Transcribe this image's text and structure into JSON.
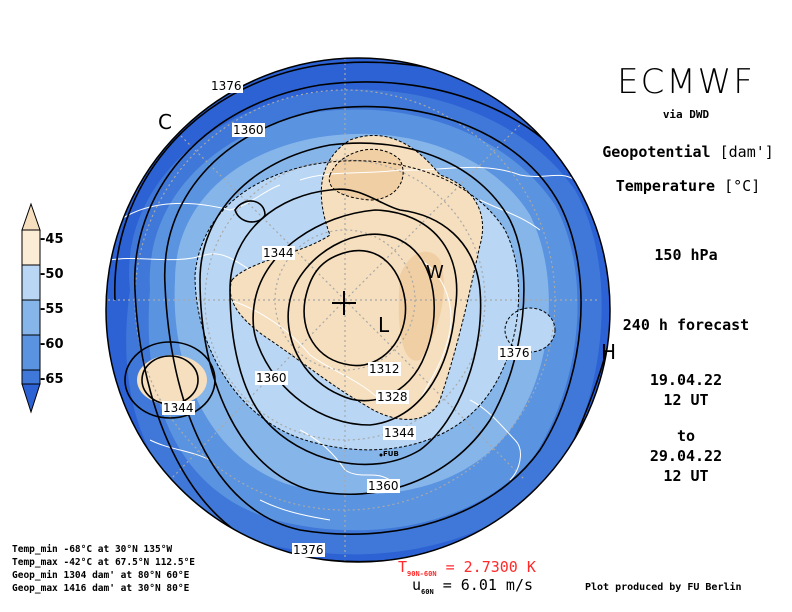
{
  "header": {
    "brand": "ECMWF",
    "via": "via DWD",
    "variable_1": "Geopotential",
    "variable_1_unit": "[dam']",
    "variable_2": "Temperature",
    "variable_2_unit": "[°C]",
    "level": "150 hPa",
    "forecast": "240 h forecast",
    "start_date": "19.04.22",
    "start_time": "12 UT",
    "to": "to",
    "end_date": "29.04.22",
    "end_time": "12 UT"
  },
  "colorbar": {
    "labels": [
      "-45",
      "-50",
      "-55",
      "-60",
      "-65"
    ],
    "colors": [
      "#f6dfbe",
      "#fbecd6",
      "#b9d7f4",
      "#86b5ea",
      "#5a93df",
      "#3f78d8",
      "#2c62d4"
    ]
  },
  "map": {
    "contour_labels": [
      "1376",
      "1360",
      "1344",
      "1312",
      "1328",
      "1344",
      "1360",
      "1376",
      "1360",
      "1344",
      "1376"
    ],
    "markers": {
      "low": "L",
      "high": "H",
      "warm": "W",
      "cold": "C",
      "fub": "FUB"
    }
  },
  "stats": {
    "temp_min": "Temp_min -68°C at 30°N 135°W",
    "temp_max": "Temp_max -42°C at 67.5°N 112.5°E",
    "geop_min": "Geop_min 1304 dam' at 80°N 60°E",
    "geop_max": "Geop_max 1416 dam' at 30°N 80°E"
  },
  "footer": {
    "t_label": "T",
    "t_sub": "90N-60N",
    "t_value": "= 2.7300 K",
    "u_label": "u",
    "u_sub": "60N",
    "u_value": "= 6.01 m/s",
    "credit": "Plot produced by FU Berlin"
  }
}
